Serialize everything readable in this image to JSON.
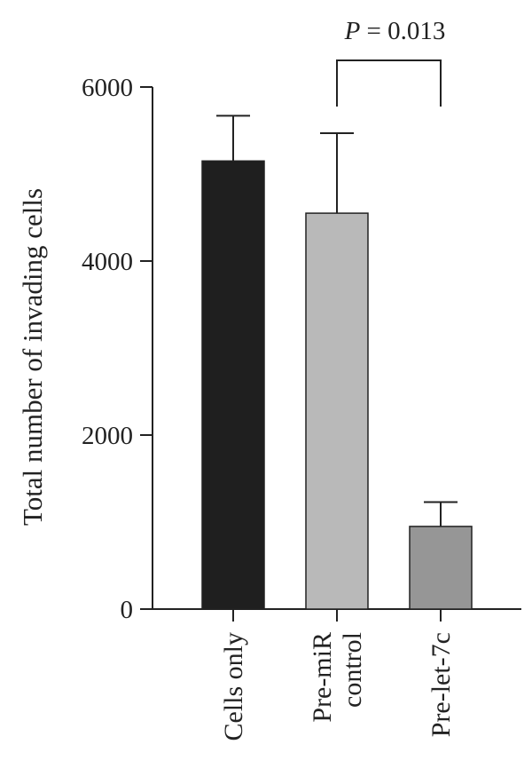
{
  "chart_data": {
    "type": "bar",
    "title": "",
    "xlabel": "",
    "ylabel": "Total number of invading cells",
    "ylim": [
      0,
      6000
    ],
    "yticks": [
      0,
      2000,
      4000,
      6000
    ],
    "grid": false,
    "categories": [
      [
        "Cells only"
      ],
      [
        "Pre-miR",
        "control"
      ],
      [
        "Pre-let-7c"
      ]
    ],
    "values": [
      5150,
      4550,
      950
    ],
    "errors": [
      520,
      920,
      280
    ],
    "colors": [
      "#1f1f1f",
      "#b9b9b9",
      "#969696"
    ],
    "annotation": {
      "text_italic": "P",
      "text_rest": " = 0.013",
      "between": [
        1,
        2
      ]
    }
  }
}
